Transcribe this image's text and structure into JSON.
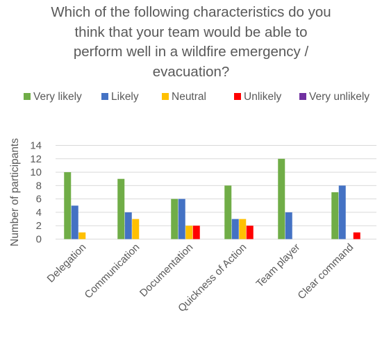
{
  "chart_data": {
    "type": "bar",
    "title": "Which of the following characteristics do you think that your team would be able to perform well in a wildfire emergency / evacuation?",
    "title_lines": [
      "Which of the following characteristics do you",
      "think that your team would be able to",
      "perform well in a wildfire emergency /",
      "evacuation?"
    ],
    "xlabel": "",
    "ylabel": "Number of participants",
    "ylim": [
      0,
      14
    ],
    "yticks": [
      0,
      2,
      4,
      6,
      8,
      10,
      12,
      14
    ],
    "grid": true,
    "legend_position": "top",
    "categories": [
      "Delegation",
      "Communication",
      "Documentation",
      "Quickness of Action",
      "Team player",
      "Clear command"
    ],
    "series": [
      {
        "name": "Very likely",
        "color": "#70ad47",
        "values": [
          10,
          9,
          6,
          8,
          12,
          7
        ]
      },
      {
        "name": "Likely",
        "color": "#4472c4",
        "values": [
          5,
          4,
          6,
          3,
          4,
          8
        ]
      },
      {
        "name": "Neutral",
        "color": "#ffc000",
        "values": [
          1,
          3,
          2,
          3,
          0,
          0
        ]
      },
      {
        "name": "Unlikely",
        "color": "#ff0000",
        "values": [
          0,
          0,
          2,
          2,
          0,
          1
        ]
      },
      {
        "name": "Very unlikely",
        "color": "#7030a0",
        "values": [
          0,
          0,
          0,
          0,
          0,
          0
        ]
      }
    ]
  }
}
